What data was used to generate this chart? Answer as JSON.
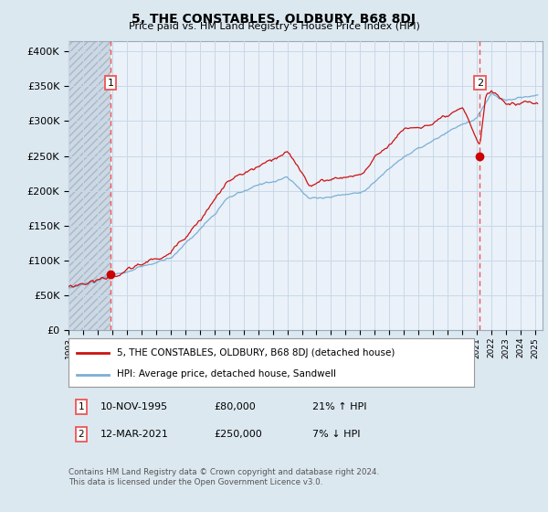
{
  "title": "5, THE CONSTABLES, OLDBURY, B68 8DJ",
  "subtitle": "Price paid vs. HM Land Registry's House Price Index (HPI)",
  "ylabel_ticks": [
    "£0",
    "£50K",
    "£100K",
    "£150K",
    "£200K",
    "£250K",
    "£300K",
    "£350K",
    "£400K"
  ],
  "ytick_values": [
    0,
    50000,
    100000,
    150000,
    200000,
    250000,
    300000,
    350000,
    400000
  ],
  "ylim": [
    0,
    415000
  ],
  "xlim_start": 1993.0,
  "xlim_end": 2025.5,
  "hpi_line_color": "#7bafd4",
  "property_line_color": "#cc1111",
  "marker_color": "#cc0000",
  "dashed_line_color": "#ee5555",
  "grid_color": "#c8d8e8",
  "bg_color": "#dce8f0",
  "plot_bg": "#eaf1f8",
  "hatch_color": "#b8c8d8",
  "legend_label_property": "5, THE CONSTABLES, OLDBURY, B68 8DJ (detached house)",
  "legend_label_hpi": "HPI: Average price, detached house, Sandwell",
  "sale1_date": "10-NOV-1995",
  "sale1_price": 80000,
  "sale1_pct": "21% ↑ HPI",
  "sale2_date": "12-MAR-2021",
  "sale2_price": 250000,
  "sale2_pct": "7% ↓ HPI",
  "copyright_text": "Contains HM Land Registry data © Crown copyright and database right 2024.\nThis data is licensed under the Open Government Licence v3.0.",
  "sale1_x": 1995.87,
  "sale2_x": 2021.2,
  "xtick_years": [
    1993,
    1994,
    1995,
    1996,
    1997,
    1998,
    1999,
    2000,
    2001,
    2002,
    2003,
    2004,
    2005,
    2006,
    2007,
    2008,
    2009,
    2010,
    2011,
    2012,
    2013,
    2014,
    2015,
    2016,
    2017,
    2018,
    2019,
    2020,
    2021,
    2022,
    2023,
    2024,
    2025
  ]
}
